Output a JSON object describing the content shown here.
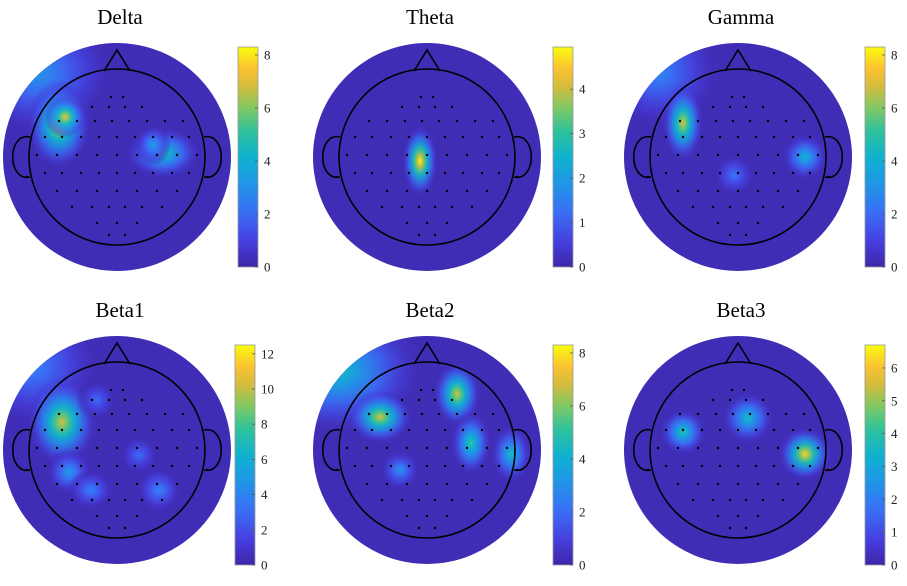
{
  "chart_data": [
    {
      "type": "heatmap",
      "title": "Delta",
      "colormap": "parula",
      "clim": [
        0,
        8.3
      ],
      "ticks": [
        0,
        2,
        4,
        6,
        8
      ]
    },
    {
      "type": "heatmap",
      "title": "Theta",
      "colormap": "parula",
      "clim": [
        0,
        4.95
      ],
      "ticks": [
        0,
        1,
        2,
        3,
        4
      ]
    },
    {
      "type": "heatmap",
      "title": "Gamma",
      "colormap": "parula",
      "clim": [
        0,
        8.3
      ],
      "ticks": [
        0,
        2,
        4,
        6,
        8
      ]
    },
    {
      "type": "heatmap",
      "title": "Beta1",
      "colormap": "parula",
      "clim": [
        0,
        12.5
      ],
      "ticks": [
        0,
        2,
        4,
        6,
        8,
        10,
        12
      ]
    },
    {
      "type": "heatmap",
      "title": "Beta2",
      "colormap": "parula",
      "clim": [
        0,
        8.3
      ],
      "ticks": [
        0,
        2,
        4,
        6,
        8
      ]
    },
    {
      "type": "heatmap",
      "title": "Beta3",
      "colormap": "parula",
      "clim": [
        0,
        6.7
      ],
      "ticks": [
        0,
        1,
        2,
        3,
        4,
        5,
        6
      ]
    }
  ]
}
